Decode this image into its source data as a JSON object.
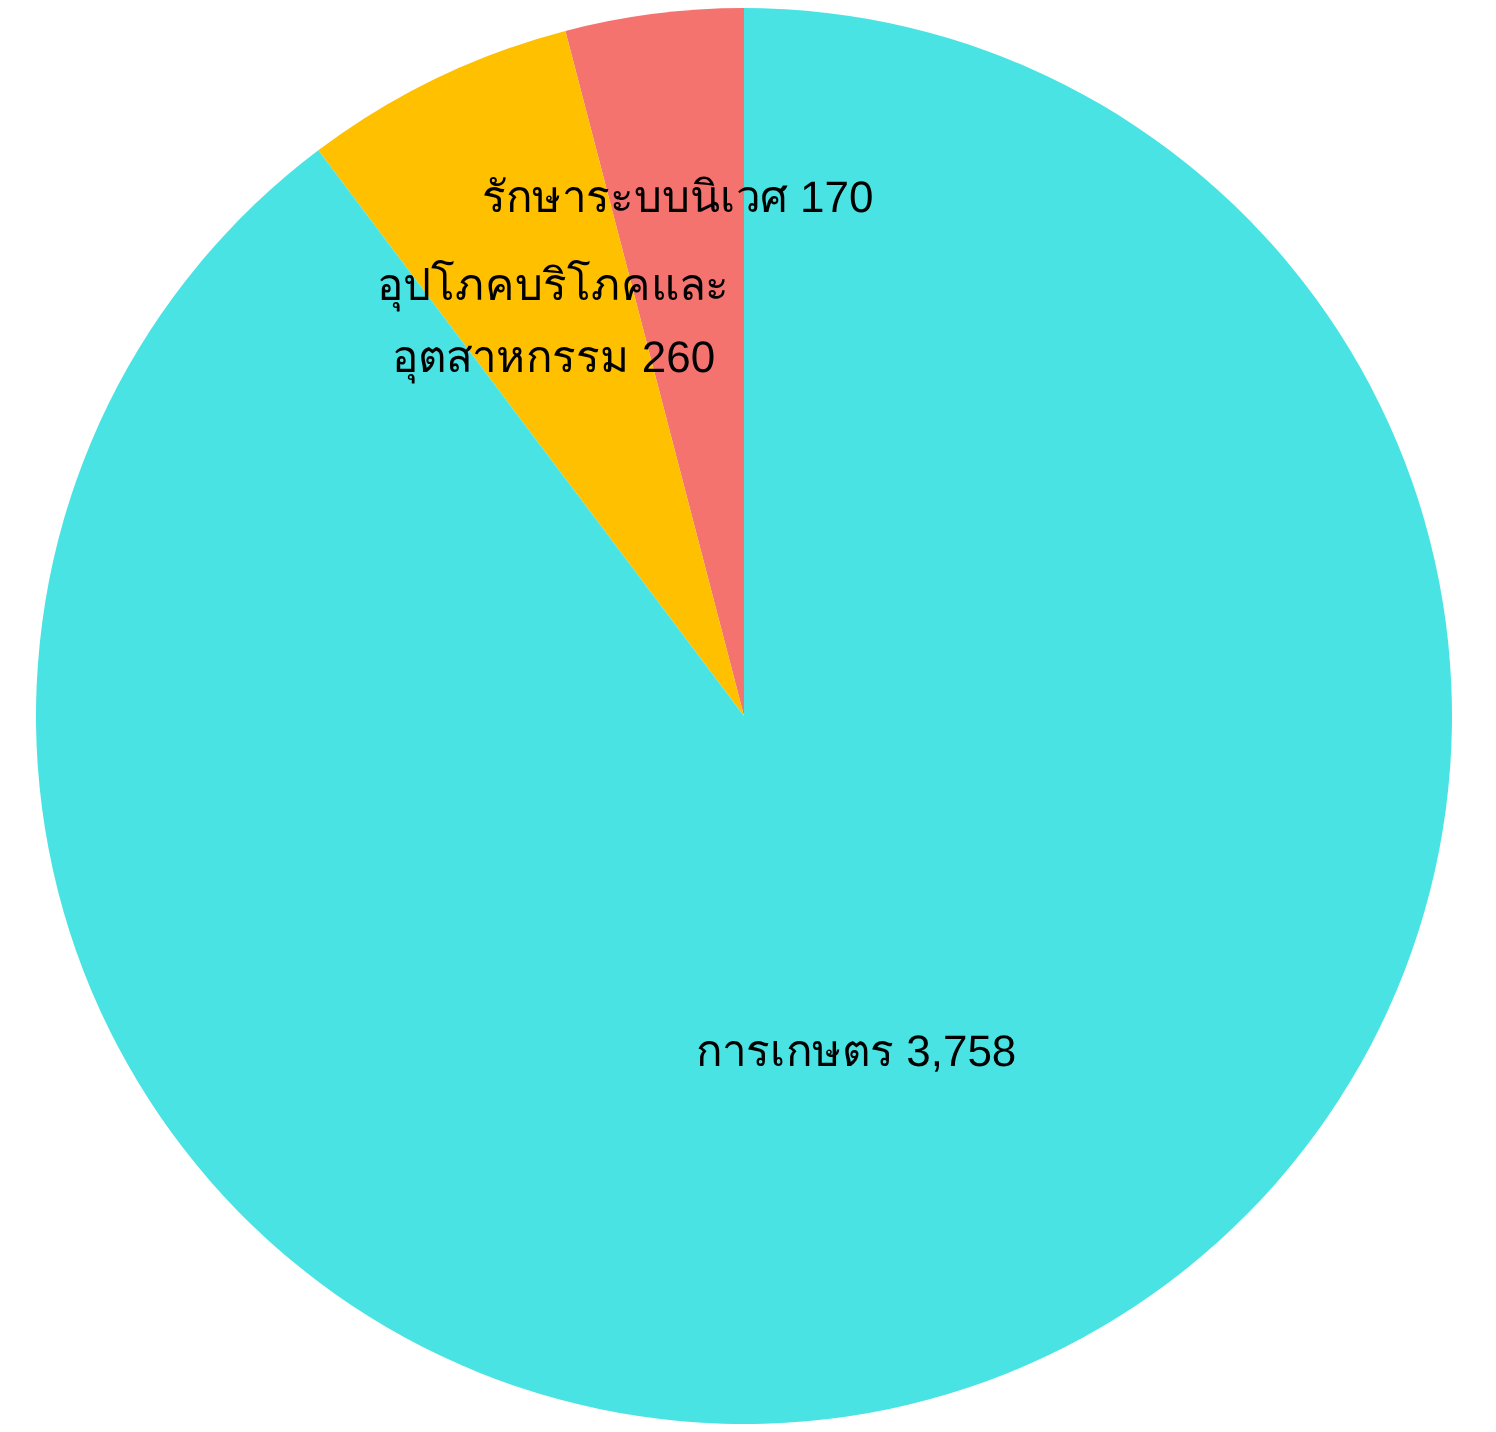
{
  "chart_data": {
    "type": "pie",
    "categories": [
      "รักษาระบบนิเวศ",
      "อุปโภคบริโภคและอุตสาหกรรม",
      "การเกษตร"
    ],
    "values": [
      170,
      260,
      3758
    ],
    "value_labels": [
      "170",
      "260",
      "3,758"
    ],
    "colors": [
      "#f4736f",
      "#ffc000",
      "#4ae3e3"
    ]
  }
}
